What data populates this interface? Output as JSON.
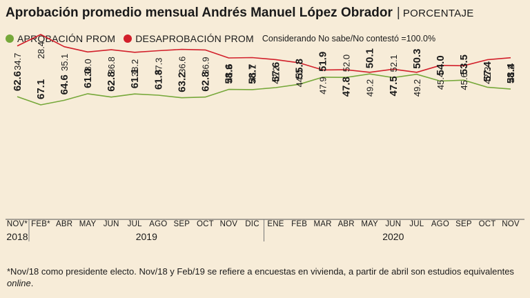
{
  "header": {
    "title": "Aprobación promedio mensual Andrés Manuel López Obrador",
    "separator": "|",
    "unit": "PORCENTAJE"
  },
  "legend": {
    "approval_label": "APROBACIÓN PROM",
    "disapproval_label": "DESAPROBACIÓN PROM",
    "note": "Considerando No sabe/No contestó =100.0%"
  },
  "colors": {
    "background": "#f7ecd8",
    "approval": "#76a83a",
    "disapproval": "#d21f2a",
    "text": "#1a1a1a"
  },
  "chart_data": {
    "type": "line",
    "title": "Aprobación promedio mensual Andrés Manuel López Obrador",
    "ylabel": "Porcentaje",
    "ylim": [
      25,
      70
    ],
    "grid": false,
    "legend_position": "top-left",
    "categories": [
      "NOV*",
      "FEB*",
      "ABR",
      "MAY",
      "JUN",
      "JUL",
      "AGO",
      "SEP",
      "OCT",
      "NOV",
      "DIC",
      "ENE",
      "FEB",
      "MAR",
      "ABR",
      "MAY",
      "JUN",
      "JUL",
      "AGO",
      "SEP",
      "OCT",
      "NOV"
    ],
    "years": [
      {
        "label": "2018",
        "start": 0,
        "end": 0
      },
      {
        "label": "2019",
        "start": 1,
        "end": 10
      },
      {
        "label": "2020",
        "start": 11,
        "end": 21
      }
    ],
    "series": [
      {
        "name": "APROBACIÓN PROM",
        "color": "#76a83a",
        "values": [
          62.6,
          67.1,
          64.6,
          61.0,
          62.8,
          61.1,
          61.8,
          63.2,
          62.8,
          58.6,
          58.7,
          57.6,
          55.8,
          51.9,
          52.0,
          50.1,
          52.1,
          50.3,
          54.0,
          53.5,
          57.4,
          58.4
        ],
        "labels": [
          "62.6",
          "67.1",
          "64.6",
          "61.0",
          "62.8",
          "61.1",
          "61.8",
          "63.2",
          "62.8",
          "58.6",
          "58.7",
          "57.6",
          "55.8",
          "51.9",
          "52.0",
          "50.1",
          "52.1",
          "50.3",
          "54.0",
          "53.5",
          "57.4",
          "58.4"
        ],
        "bold": [
          true,
          true,
          true,
          true,
          true,
          true,
          true,
          true,
          true,
          true,
          true,
          true,
          true,
          true,
          false,
          true,
          false,
          true,
          true,
          true,
          true,
          true
        ],
        "label_side": [
          "above",
          "above",
          "above",
          "above",
          "above",
          "above",
          "above",
          "above",
          "above",
          "above",
          "above",
          "above",
          "above",
          "above",
          "above",
          "above",
          "above",
          "above",
          "above",
          "above",
          "above",
          "above"
        ]
      },
      {
        "name": "DESAPROBACIÓN PROM",
        "color": "#d21f2a",
        "values": [
          34.7,
          28.4,
          35.1,
          38.0,
          36.8,
          38.2,
          37.3,
          36.6,
          36.9,
          41.3,
          41.1,
          42.2,
          44.0,
          47.9,
          47.8,
          49.2,
          47.5,
          49.2,
          45.4,
          45.6,
          42.3,
          41.2
        ],
        "labels": [
          "34.7",
          "28.4",
          "35.1",
          "38.0",
          "36.8",
          "38.2",
          "37.3",
          "36.6",
          "36.9",
          "41.3",
          "41.1",
          "42.2",
          "44.0",
          "47.9",
          "47.8",
          "49.2",
          "47.5",
          "49.2",
          "45.4",
          "45.6",
          "42.3",
          "41.2"
        ],
        "bold": [
          false,
          false,
          false,
          false,
          false,
          false,
          false,
          false,
          false,
          false,
          false,
          false,
          false,
          false,
          true,
          false,
          true,
          false,
          false,
          false,
          false,
          false
        ]
      }
    ]
  },
  "footnote": {
    "text": "*Nov/18 como presidente electo. Nov/18 y Feb/19 se refiere a encuestas en vivienda, a partir de abril son estudios equivalentes ",
    "emphasis": "online",
    "end": "."
  }
}
